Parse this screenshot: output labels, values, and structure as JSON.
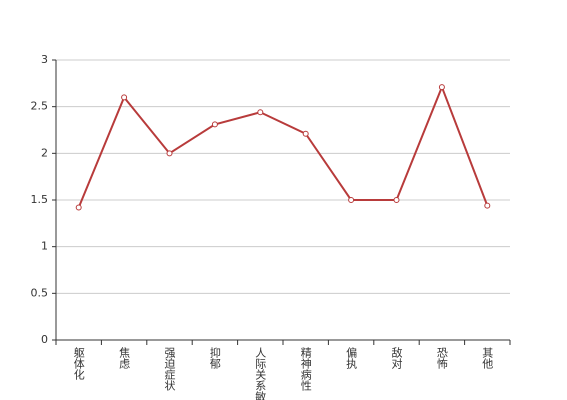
{
  "chart_data": {
    "type": "line",
    "categories": [
      "躯体化",
      "焦虑",
      "强迫症状",
      "抑郁",
      "人际关系敏感",
      "精神病性",
      "偏执",
      "敌对",
      "恐怖",
      "其他"
    ],
    "values": [
      1.42,
      2.6,
      2.0,
      2.31,
      2.44,
      2.21,
      1.5,
      1.5,
      2.71,
      1.44
    ],
    "color": "#b83b3b",
    "ylim": [
      0,
      3
    ],
    "yticks": [
      0,
      0.5,
      1,
      1.5,
      2,
      2.5,
      3
    ],
    "grid": true
  }
}
